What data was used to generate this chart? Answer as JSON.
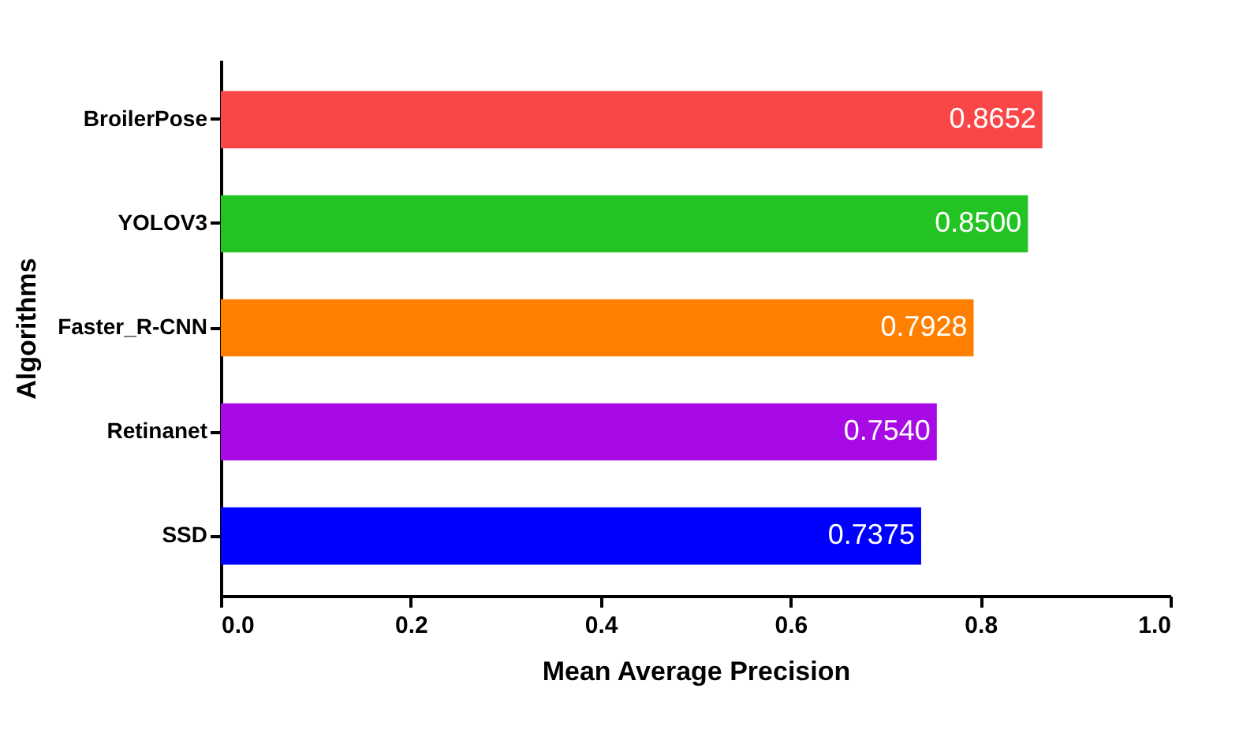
{
  "chart_data": {
    "type": "bar",
    "orientation": "horizontal",
    "xlabel": "Mean Average Precision",
    "ylabel": "Algorithms",
    "categories": [
      "BroilerPose",
      "YOLOV3",
      "Faster_R-CNN",
      "Retinanet",
      "SSD"
    ],
    "values": [
      0.8652,
      0.85,
      0.7928,
      0.754,
      0.7375
    ],
    "value_labels": [
      "0.8652",
      "0.8500",
      "0.7928",
      "0.7540",
      "0.7375"
    ],
    "colors": [
      "#fa4646",
      "#22c322",
      "#ff8000",
      "#a70ae4",
      "#0000ff"
    ],
    "xlim": [
      0,
      1
    ],
    "xticks": [
      {
        "value": 0,
        "label": "0.0"
      },
      {
        "value": 0.2,
        "label": "0.2"
      },
      {
        "value": 0.4,
        "label": "0.4"
      },
      {
        "value": 0.6,
        "label": "0.6"
      },
      {
        "value": 0.8,
        "label": "0.8"
      },
      {
        "value": 1,
        "label": "1.0"
      }
    ],
    "grid": false
  }
}
